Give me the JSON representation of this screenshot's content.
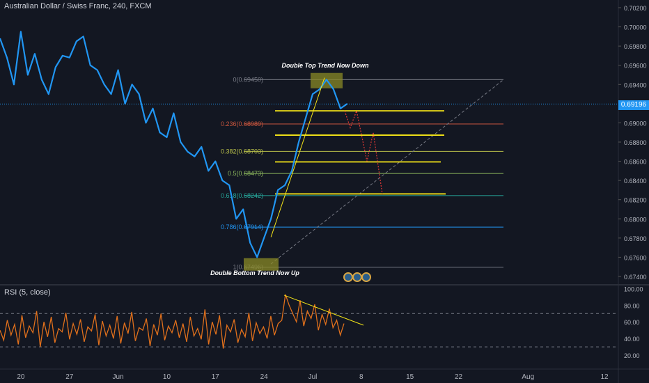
{
  "header": {
    "symbol_title": "Australian Dollar / Swiss Franc, 240, FXCM",
    "rsi_label": "RSI (5, close)",
    "current_price_tag": "0.69196"
  },
  "colors": {
    "background": "#131722",
    "price_line": "#2196f3",
    "rsi_line": "#e0701c",
    "yellow_lines": "#f5e617",
    "fib_lines": "#787b86",
    "red_projection": "#e53935"
  },
  "annotations": {
    "double_top": "Double Top Trend Now Down",
    "double_bottom": "Double Bottom Trend Now Up"
  },
  "fib_levels": [
    {
      "label": "0(0.69450)",
      "price": 0.6945,
      "color": "#787b86"
    },
    {
      "label": "0.236(0.68989)",
      "price": 0.68989,
      "color": "#c8553d"
    },
    {
      "label": "0.382(0.68703)",
      "price": 0.68703,
      "color": "#b9c04a"
    },
    {
      "label": "0.5(0.68473)",
      "price": 0.68473,
      "color": "#8bb65c"
    },
    {
      "label": "0.618(0.68242)",
      "price": 0.68242,
      "color": "#26a69a"
    },
    {
      "label": "0.786(0.67914)",
      "price": 0.67914,
      "color": "#2196f3"
    },
    {
      "label": "1(0.67496)",
      "price": 0.67496,
      "color": "#787b86"
    }
  ],
  "badges": [
    "1",
    "2",
    "3"
  ],
  "chart_data": [
    {
      "type": "line",
      "title": "Australian Dollar / Swiss Franc, 240, FXCM",
      "x_ticks": [
        "20",
        "27",
        "Jun",
        "10",
        "17",
        "24",
        "Jul",
        "8",
        "15",
        "22",
        "Aug",
        "12"
      ],
      "y_ticks": [
        "0.70200",
        "0.70000",
        "0.69800",
        "0.69600",
        "0.69400",
        "0.69200",
        "0.69000",
        "0.68800",
        "0.68600",
        "0.68400",
        "0.68200",
        "0.68000",
        "0.67800",
        "0.67600",
        "0.67400"
      ],
      "ylim": [
        0.6732,
        0.7028
      ],
      "x_range_days": [
        "2019-05-17",
        "2019-08-14"
      ],
      "series": [
        {
          "x": [
            "2019-05-17",
            "2019-05-18",
            "2019-05-19",
            "2019-05-20",
            "2019-05-21",
            "2019-05-22",
            "2019-05-23",
            "2019-05-24",
            "2019-05-25",
            "2019-05-26",
            "2019-05-27",
            "2019-05-28",
            "2019-05-29",
            "2019-05-30",
            "2019-05-31",
            "2019-06-01",
            "2019-06-02",
            "2019-06-03",
            "2019-06-04",
            "2019-06-05",
            "2019-06-06",
            "2019-06-07",
            "2019-06-08",
            "2019-06-09",
            "2019-06-10",
            "2019-06-11",
            "2019-06-12",
            "2019-06-13",
            "2019-06-14",
            "2019-06-15",
            "2019-06-16",
            "2019-06-17",
            "2019-06-18",
            "2019-06-19",
            "2019-06-20",
            "2019-06-21",
            "2019-06-22",
            "2019-06-23",
            "2019-06-24",
            "2019-06-25",
            "2019-06-26",
            "2019-06-27",
            "2019-06-28",
            "2019-06-29",
            "2019-06-30",
            "2019-07-01",
            "2019-07-02",
            "2019-07-03",
            "2019-07-04",
            "2019-07-05",
            "2019-07-06"
          ],
          "values": [
            0.6988,
            0.6968,
            0.694,
            0.6995,
            0.695,
            0.6972,
            0.6945,
            0.693,
            0.6958,
            0.697,
            0.6968,
            0.6985,
            0.699,
            0.696,
            0.6955,
            0.694,
            0.693,
            0.6955,
            0.692,
            0.694,
            0.693,
            0.69,
            0.6915,
            0.689,
            0.6885,
            0.691,
            0.688,
            0.687,
            0.6865,
            0.6875,
            0.685,
            0.686,
            0.684,
            0.6835,
            0.68,
            0.681,
            0.6775,
            0.676,
            0.678,
            0.68,
            0.683,
            0.6835,
            0.685,
            0.688,
            0.6905,
            0.693,
            0.6935,
            0.6945,
            0.6935,
            0.6915,
            0.692
          ]
        }
      ]
    },
    {
      "type": "line",
      "title": "RSI (5, close)",
      "y_ticks": [
        "100.00",
        "80.00",
        "60.00",
        "40.00",
        "20.00"
      ],
      "ylim": [
        10,
        102
      ],
      "reference_lines": [
        70,
        30
      ],
      "series": [
        {
          "values": [
            50,
            38,
            62,
            44,
            57,
            33,
            68,
            41,
            55,
            47,
            73,
            30,
            60,
            42,
            66,
            35,
            52,
            48,
            71,
            39,
            58,
            45,
            63,
            36,
            54,
            49,
            69,
            32,
            61,
            43,
            56,
            40,
            67,
            34,
            59,
            46,
            72,
            37,
            53,
            50,
            64,
            31,
            57,
            44,
            70,
            38,
            55,
            47,
            62,
            41,
            58,
            36,
            66,
            43,
            52,
            39,
            75,
            33,
            60,
            45,
            68,
            28,
            56,
            48,
            63,
            35,
            51,
            42,
            71,
            37,
            59,
            46,
            54,
            40,
            67,
            44,
            58,
            62,
            93,
            80,
            70,
            60,
            86,
            55,
            73,
            64,
            81,
            50,
            69,
            57,
            76,
            53,
            62,
            44,
            58
          ]
        }
      ]
    }
  ]
}
